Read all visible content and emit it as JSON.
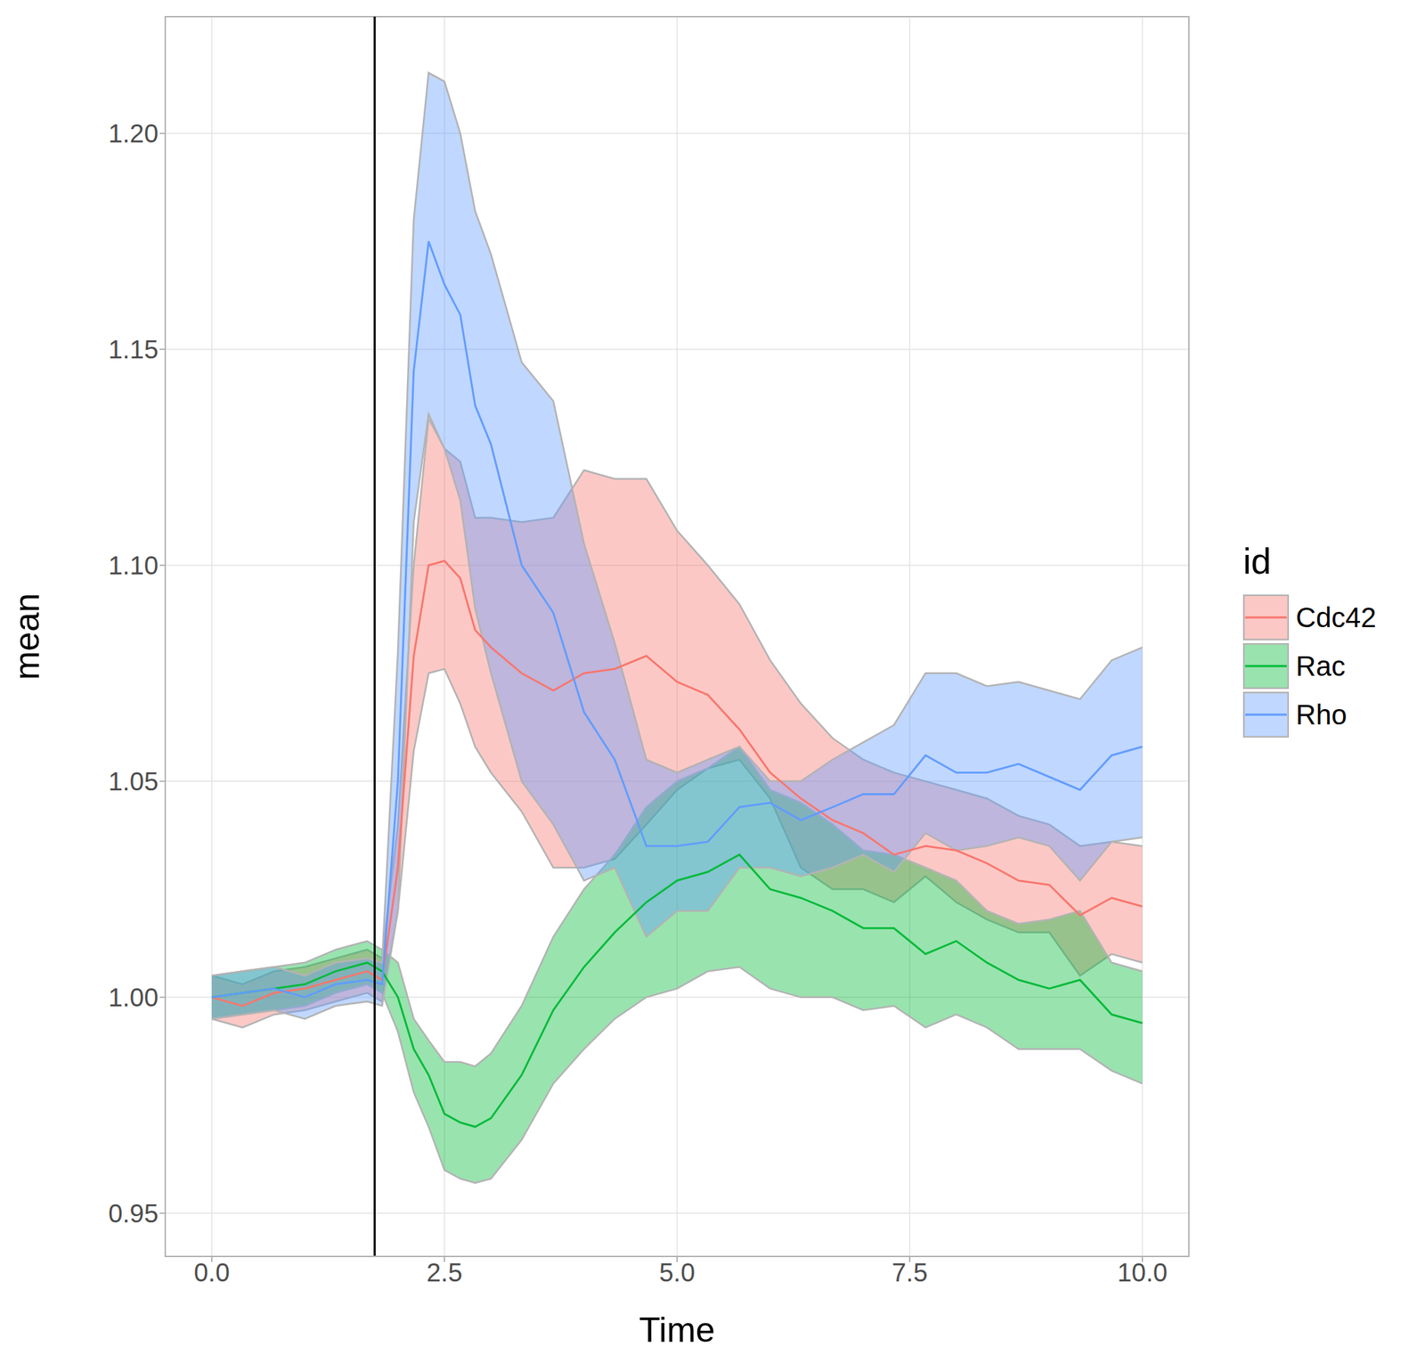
{
  "chart_data": {
    "type": "line",
    "x_label": "Time",
    "y_label": "mean",
    "legend_title": "id",
    "legend": "right",
    "grid": true,
    "xlim": [
      -0.5,
      10.5
    ],
    "xticks": [
      {
        "value": 0,
        "label": "0.0"
      },
      2.5,
      {
        "value": 5,
        "label": "5.0"
      },
      7.5,
      {
        "value": 10,
        "label": "10.0"
      }
    ],
    "ylim": [
      0.94,
      1.227
    ],
    "yticks": [
      0.95,
      {
        "value": 1,
        "label": "1.00"
      },
      1.05,
      {
        "value": 1.1,
        "label": "1.10"
      },
      1.15,
      {
        "value": 1.2,
        "label": "1.20"
      }
    ],
    "vline": 1.75,
    "x": [
      0,
      0.33,
      0.67,
      1,
      1.33,
      1.67,
      1.83,
      2,
      2.17,
      2.33,
      2.5,
      2.67,
      2.83,
      3,
      3.33,
      3.67,
      4,
      4.33,
      4.67,
      5,
      5.33,
      5.67,
      6,
      6.33,
      6.67,
      7,
      7.33,
      7.67,
      8,
      8.33,
      8.67,
      9,
      9.33,
      9.67,
      10
    ],
    "series": [
      {
        "name": "Cdc42",
        "color": "#F8766D",
        "values": [
          1.0,
          0.998,
          1.001,
          1.002,
          1.004,
          1.006,
          1.004,
          1.03,
          1.079,
          1.1,
          1.101,
          1.097,
          1.085,
          1.081,
          1.075,
          1.071,
          1.075,
          1.076,
          1.079,
          1.073,
          1.07,
          1.062,
          1.052,
          1.046,
          1.041,
          1.038,
          1.033,
          1.035,
          1.034,
          1.031,
          1.027,
          1.026,
          1.019,
          1.023,
          1.021
        ],
        "upper": [
          1.005,
          1.003,
          1.006,
          1.007,
          1.009,
          1.011,
          1.009,
          1.04,
          1.1,
          1.134,
          1.127,
          1.124,
          1.111,
          1.111,
          1.11,
          1.111,
          1.122,
          1.12,
          1.12,
          1.108,
          1.1,
          1.091,
          1.078,
          1.068,
          1.06,
          1.055,
          1.052,
          1.05,
          1.048,
          1.046,
          1.042,
          1.04,
          1.035,
          1.036,
          1.035
        ],
        "lower": [
          0.995,
          0.993,
          0.996,
          0.997,
          0.999,
          1.001,
          0.999,
          1.02,
          1.057,
          1.075,
          1.076,
          1.068,
          1.058,
          1.052,
          1.043,
          1.03,
          1.03,
          1.032,
          1.04,
          1.048,
          1.053,
          1.055,
          1.046,
          1.03,
          1.025,
          1.025,
          1.022,
          1.028,
          1.022,
          1.018,
          1.015,
          1.015,
          1.005,
          1.01,
          1.008
        ]
      },
      {
        "name": "Rac",
        "color": "#00BA38",
        "values": [
          1.0,
          1.001,
          1.002,
          1.003,
          1.006,
          1.008,
          1.006,
          1.0,
          0.988,
          0.982,
          0.973,
          0.971,
          0.97,
          0.972,
          0.982,
          0.997,
          1.007,
          1.015,
          1.022,
          1.027,
          1.029,
          1.033,
          1.025,
          1.023,
          1.02,
          1.016,
          1.016,
          1.01,
          1.013,
          1.008,
          1.004,
          1.002,
          1.004,
          0.996,
          0.994
        ],
        "upper": [
          1.005,
          1.006,
          1.007,
          1.008,
          1.011,
          1.013,
          1.011,
          1.008,
          0.995,
          0.99,
          0.985,
          0.985,
          0.984,
          0.987,
          0.998,
          1.014,
          1.025,
          1.033,
          1.044,
          1.05,
          1.053,
          1.058,
          1.048,
          1.045,
          1.04,
          1.034,
          1.033,
          1.03,
          1.027,
          1.02,
          1.017,
          1.018,
          1.02,
          1.008,
          1.006
        ],
        "lower": [
          0.995,
          0.996,
          0.997,
          0.998,
          1.001,
          1.003,
          1.001,
          0.992,
          0.978,
          0.97,
          0.96,
          0.958,
          0.957,
          0.958,
          0.967,
          0.98,
          0.988,
          0.995,
          1.0,
          1.002,
          1.006,
          1.007,
          1.002,
          1.0,
          1.0,
          0.997,
          0.998,
          0.993,
          0.996,
          0.993,
          0.988,
          0.988,
          0.988,
          0.983,
          0.98
        ]
      },
      {
        "name": "Rho",
        "color": "#619CFF",
        "values": [
          1.0,
          1.001,
          1.002,
          1.0,
          1.003,
          1.004,
          1.003,
          1.05,
          1.145,
          1.175,
          1.165,
          1.158,
          1.137,
          1.128,
          1.1,
          1.089,
          1.066,
          1.055,
          1.035,
          1.035,
          1.036,
          1.044,
          1.045,
          1.041,
          1.044,
          1.047,
          1.047,
          1.056,
          1.052,
          1.052,
          1.054,
          1.051,
          1.048,
          1.056,
          1.058
        ],
        "upper": [
          1.005,
          1.006,
          1.007,
          1.005,
          1.008,
          1.009,
          1.008,
          1.08,
          1.18,
          1.214,
          1.212,
          1.2,
          1.182,
          1.172,
          1.147,
          1.138,
          1.105,
          1.082,
          1.055,
          1.052,
          1.055,
          1.058,
          1.05,
          1.05,
          1.055,
          1.059,
          1.063,
          1.075,
          1.075,
          1.072,
          1.073,
          1.071,
          1.069,
          1.078,
          1.081
        ],
        "lower": [
          0.995,
          0.996,
          0.997,
          0.995,
          0.998,
          0.999,
          0.998,
          1.02,
          1.11,
          1.135,
          1.127,
          1.115,
          1.09,
          1.075,
          1.05,
          1.04,
          1.027,
          1.03,
          1.014,
          1.02,
          1.02,
          1.03,
          1.03,
          1.028,
          1.03,
          1.033,
          1.029,
          1.038,
          1.034,
          1.035,
          1.037,
          1.035,
          1.027,
          1.036,
          1.037
        ]
      }
    ]
  }
}
